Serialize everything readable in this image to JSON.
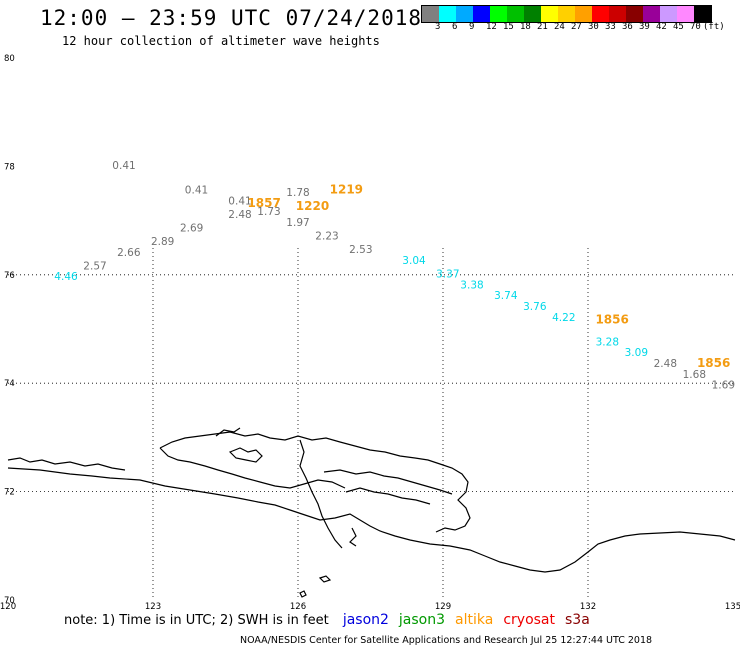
{
  "title": "12:00 – 23:59 UTC 07/24/2018",
  "subtitle": "12 hour collection of altimeter wave heights",
  "legend": {
    "colors": [
      "#808080",
      "#00ffff",
      "#00aaff",
      "#0000ff",
      "#00ff00",
      "#00c000",
      "#008000",
      "#ffff00",
      "#ffd000",
      "#ffa000",
      "#ff0000",
      "#cc0000",
      "#880000",
      "#990099",
      "#cc99ff",
      "#ff88ff",
      "#000000"
    ],
    "ticks": [
      "3",
      "6",
      "9",
      "12",
      "15",
      "18",
      "21",
      "24",
      "27",
      "30",
      "33",
      "36",
      "39",
      "42",
      "45",
      "70",
      "(ft)"
    ]
  },
  "axes": {
    "lat_labels": [
      "80",
      "78",
      "76",
      "74",
      "72",
      "70"
    ],
    "lon_labels": [
      "120",
      "123",
      "126",
      "129",
      "132",
      "135"
    ]
  },
  "observations": [
    {
      "text": "0.41",
      "lon": 122.4,
      "lat": 77.95,
      "sat": "cryosat"
    },
    {
      "text": "0.41",
      "lon": 123.9,
      "lat": 77.5,
      "sat": "cryosat"
    },
    {
      "text": "0.41",
      "lon": 124.8,
      "lat": 77.3,
      "sat": "cryosat"
    },
    {
      "text": "2.48",
      "lon": 124.8,
      "lat": 77.05,
      "sat": "cryosat"
    },
    {
      "text": "1.73",
      "lon": 125.4,
      "lat": 77.1,
      "sat": "cryosat"
    },
    {
      "text": "1.78",
      "lon": 126.0,
      "lat": 77.45,
      "sat": "cryosat"
    },
    {
      "text": "1.97",
      "lon": 126.0,
      "lat": 76.9,
      "sat": "cryosat"
    },
    {
      "text": "2.23",
      "lon": 126.6,
      "lat": 76.65,
      "sat": "cryosat"
    },
    {
      "text": "2.53",
      "lon": 127.3,
      "lat": 76.4,
      "sat": "cryosat"
    },
    {
      "text": "2.69",
      "lon": 123.8,
      "lat": 76.8,
      "sat": "cryosat"
    },
    {
      "text": "2.89",
      "lon": 123.2,
      "lat": 76.55,
      "sat": "cryosat"
    },
    {
      "text": "2.66",
      "lon": 122.5,
      "lat": 76.35,
      "sat": "cryosat"
    },
    {
      "text": "2.57",
      "lon": 121.8,
      "lat": 76.1,
      "sat": "cryosat"
    },
    {
      "text": "4.46",
      "lon": 121.2,
      "lat": 75.9,
      "sat": "jason3"
    },
    {
      "text": "3.04",
      "lon": 128.4,
      "lat": 76.2,
      "sat": "jason3"
    },
    {
      "text": "3.37",
      "lon": 129.1,
      "lat": 75.95,
      "sat": "jason3"
    },
    {
      "text": "3.38",
      "lon": 129.6,
      "lat": 75.75,
      "sat": "jason3"
    },
    {
      "text": "3.74",
      "lon": 130.3,
      "lat": 75.55,
      "sat": "jason3"
    },
    {
      "text": "3.76",
      "lon": 130.9,
      "lat": 75.35,
      "sat": "jason3"
    },
    {
      "text": "4.22",
      "lon": 131.5,
      "lat": 75.15,
      "sat": "jason3"
    },
    {
      "text": "3.28",
      "lon": 132.4,
      "lat": 74.7,
      "sat": "jason3"
    },
    {
      "text": "3.09",
      "lon": 133.0,
      "lat": 74.5,
      "sat": "jason3"
    },
    {
      "text": "2.48",
      "lon": 133.6,
      "lat": 74.3,
      "sat": "cryosat"
    },
    {
      "text": "1.68",
      "lon": 134.2,
      "lat": 74.1,
      "sat": "cryosat"
    },
    {
      "text": "1.69",
      "lon": 134.8,
      "lat": 73.9,
      "sat": "cryosat"
    }
  ],
  "pass_times": [
    {
      "text": "1857",
      "lon": 125.3,
      "lat": 77.25
    },
    {
      "text": "1220",
      "lon": 126.3,
      "lat": 77.2
    },
    {
      "text": "1219",
      "lon": 127.0,
      "lat": 77.5
    },
    {
      "text": "1856",
      "lon": 132.5,
      "lat": 75.1
    },
    {
      "text": "1856",
      "lon": 134.6,
      "lat": 74.3
    }
  ],
  "note": {
    "prefix": "note: 1) Time is in UTC; 2) SWH is in feet",
    "satellites": [
      {
        "name": "jason2",
        "color": "#0000dd"
      },
      {
        "name": "jason3",
        "color": "#009900"
      },
      {
        "name": "altika",
        "color": "#ff9900"
      },
      {
        "name": "cryosat",
        "color": "#ee0000"
      },
      {
        "name": "s3a",
        "color": "#880000"
      }
    ]
  },
  "credit": "NOAA/NESDIS Center for Satellite Applications and Research    Jul 25 12:27:44 UTC 2018",
  "colors": {
    "cryosat_label": "#707070",
    "jason3_label": "#00d8e8",
    "pass_time": "#f39c12"
  }
}
